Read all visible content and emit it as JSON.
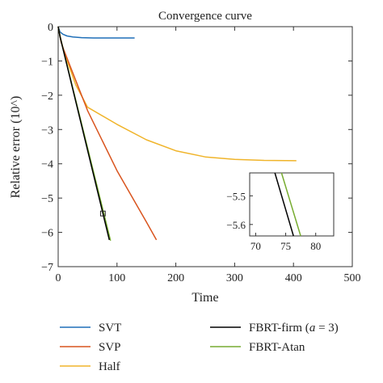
{
  "chart_data": {
    "type": "line",
    "title": "Convergence curve",
    "xlabel": "Time",
    "ylabel": "Relative error (10^)",
    "xlim": [
      0,
      500
    ],
    "ylim": [
      -7,
      0
    ],
    "xticks": [
      "0",
      "100",
      "200",
      "300",
      "400",
      "500"
    ],
    "yticks": [
      "0",
      "−1",
      "−2",
      "−3",
      "−4",
      "−5",
      "−6",
      "−7"
    ],
    "grid": false,
    "legend_position": "bottom",
    "series": [
      {
        "name": "SVT",
        "color": "#1f6fb8",
        "x": [
          0,
          3,
          8,
          15,
          25,
          40,
          60,
          80,
          100,
          130
        ],
        "y": [
          0,
          -0.15,
          -0.22,
          -0.27,
          -0.3,
          -0.32,
          -0.33,
          -0.33,
          -0.33,
          -0.33
        ]
      },
      {
        "name": "SVP",
        "color": "#d9541e",
        "x": [
          0,
          5,
          10,
          50,
          100,
          150,
          167
        ],
        "y": [
          0,
          -0.45,
          -0.7,
          -2.45,
          -4.2,
          -5.7,
          -6.22
        ]
      },
      {
        "name": "Half",
        "color": "#f0b42a",
        "x": [
          0,
          5,
          10,
          30,
          50,
          100,
          150,
          200,
          250,
          300,
          350,
          405
        ],
        "y": [
          0,
          -0.4,
          -0.75,
          -1.7,
          -2.35,
          -2.85,
          -3.3,
          -3.62,
          -3.8,
          -3.87,
          -3.9,
          -3.91
        ]
      },
      {
        "name": "FBRT-firm",
        "label_prefix": "FBRT-firm (",
        "label_italic": "a",
        "label_suffix": " = 3)",
        "color": "#000000",
        "x": [
          0,
          3,
          87
        ],
        "y": [
          0,
          -0.28,
          -6.22
        ]
      },
      {
        "name": "FBRT-Atan",
        "color": "#77ac30",
        "x": [
          0,
          3,
          89
        ],
        "y": [
          0,
          -0.28,
          -6.24
        ]
      }
    ],
    "marker_box": {
      "x": [
        72,
        80
      ],
      "y": [
        -5.38,
        -5.52
      ]
    },
    "inset": {
      "xlim": [
        69,
        83
      ],
      "ylim": [
        -5.64,
        -5.42
      ],
      "xticks": [
        "70",
        "75",
        "80"
      ],
      "yticks": [
        "−5.5",
        "−5.6"
      ],
      "series": [
        {
          "name": "FBRT-firm",
          "color": "#000000",
          "x": [
            73.2,
            76.3
          ],
          "y": [
            -5.42,
            -5.64
          ]
        },
        {
          "name": "FBRT-Atan",
          "color": "#77ac30",
          "x": [
            74.3,
            77.5
          ],
          "y": [
            -5.42,
            -5.64
          ]
        }
      ]
    }
  }
}
